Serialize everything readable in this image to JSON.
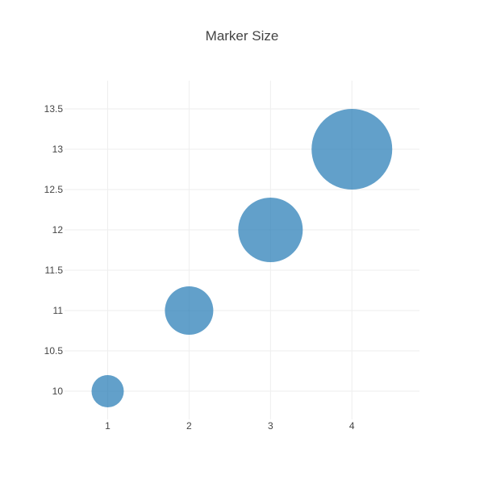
{
  "chart_data": {
    "type": "scatter",
    "title": "Marker Size",
    "xlabel": "",
    "ylabel": "",
    "x": [
      1,
      2,
      3,
      4
    ],
    "y": [
      10,
      11,
      12,
      13
    ],
    "marker_sizes": [
      40,
      60,
      80,
      100
    ],
    "marker_color": "#1f77b4",
    "marker_opacity": 0.7,
    "xlim": [
      0.47,
      4.83
    ],
    "ylim": [
      9.65,
      13.85
    ],
    "x_ticks": [
      1,
      2,
      3,
      4
    ],
    "x_tick_labels": [
      "1",
      "2",
      "3",
      "4"
    ],
    "y_ticks": [
      10,
      10.5,
      11,
      11.5,
      12,
      12.5,
      13,
      13.5
    ],
    "y_tick_labels": [
      "10",
      "10.5",
      "11",
      "11.5",
      "12",
      "12.5",
      "13",
      "13.5"
    ],
    "grid": true,
    "legend": "none"
  }
}
